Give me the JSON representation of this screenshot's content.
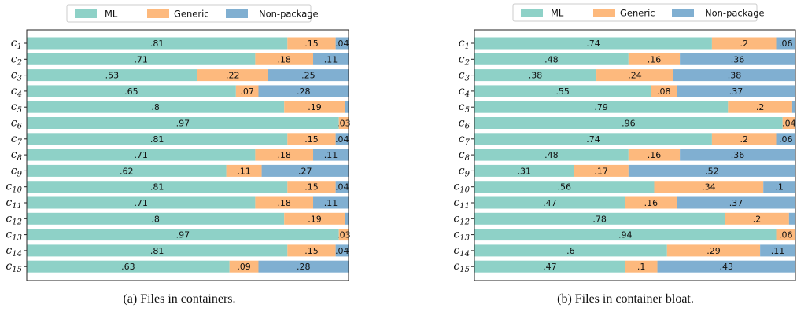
{
  "colors": {
    "ML": "#8ED1C7",
    "Generic": "#FDB97D",
    "Non-package": "#80AFD1"
  },
  "legend": [
    "ML",
    "Generic",
    "Non-package"
  ],
  "chart_data": [
    {
      "type": "bar",
      "orientation": "horizontal",
      "stacked": true,
      "caption": "(a) Files in containers.",
      "categories": [
        "c1",
        "c2",
        "c3",
        "c4",
        "c5",
        "c6",
        "c7",
        "c8",
        "c9",
        "c10",
        "c11",
        "c12",
        "c13",
        "c14",
        "c15"
      ],
      "xlim": [
        0,
        1
      ],
      "series": [
        {
          "name": "ML",
          "values": [
            0.81,
            0.71,
            0.53,
            0.65,
            0.8,
            0.97,
            0.81,
            0.71,
            0.62,
            0.81,
            0.71,
            0.8,
            0.97,
            0.81,
            0.63
          ],
          "labels": [
            ".81",
            ".71",
            ".53",
            ".65",
            ".8",
            ".97",
            ".81",
            ".71",
            ".62",
            ".81",
            ".71",
            ".8",
            ".97",
            ".81",
            ".63"
          ]
        },
        {
          "name": "Generic",
          "values": [
            0.15,
            0.18,
            0.22,
            0.07,
            0.19,
            0.03,
            0.15,
            0.18,
            0.11,
            0.15,
            0.18,
            0.19,
            0.03,
            0.15,
            0.09
          ],
          "labels": [
            ".15",
            ".18",
            ".22",
            ".07",
            ".19",
            ".03",
            ".15",
            ".18",
            ".11",
            ".15",
            ".18",
            ".19",
            ".03",
            ".15",
            ".09"
          ]
        },
        {
          "name": "Non-package",
          "values": [
            0.04,
            0.11,
            0.25,
            0.28,
            0.01,
            0.0,
            0.04,
            0.11,
            0.27,
            0.04,
            0.11,
            0.01,
            0.0,
            0.04,
            0.28
          ],
          "labels": [
            ".04",
            ".11",
            ".25",
            ".28",
            "",
            "",
            ".04",
            ".11",
            ".27",
            ".04",
            ".11",
            "",
            "",
            ".04",
            ".28"
          ]
        }
      ]
    },
    {
      "type": "bar",
      "orientation": "horizontal",
      "stacked": true,
      "caption": "(b) Files in container bloat.",
      "categories": [
        "c1",
        "c2",
        "c3",
        "c4",
        "c5",
        "c6",
        "c7",
        "c8",
        "c9",
        "c10",
        "c11",
        "c12",
        "c13",
        "c14",
        "c15"
      ],
      "xlim": [
        0,
        1
      ],
      "series": [
        {
          "name": "ML",
          "values": [
            0.74,
            0.48,
            0.38,
            0.55,
            0.79,
            0.96,
            0.74,
            0.48,
            0.31,
            0.56,
            0.47,
            0.78,
            0.94,
            0.6,
            0.47
          ],
          "labels": [
            ".74",
            ".48",
            ".38",
            ".55",
            ".79",
            ".96",
            ".74",
            ".48",
            ".31",
            ".56",
            ".47",
            ".78",
            ".94",
            ".6",
            ".47"
          ]
        },
        {
          "name": "Generic",
          "values": [
            0.2,
            0.16,
            0.24,
            0.08,
            0.2,
            0.04,
            0.2,
            0.16,
            0.17,
            0.34,
            0.16,
            0.2,
            0.06,
            0.29,
            0.1
          ],
          "labels": [
            ".2",
            ".16",
            ".24",
            ".08",
            ".2",
            ".04",
            ".2",
            ".16",
            ".17",
            ".34",
            ".16",
            ".2",
            ".06",
            ".29",
            ".1"
          ]
        },
        {
          "name": "Non-package",
          "values": [
            0.06,
            0.36,
            0.38,
            0.37,
            0.01,
            0.0,
            0.06,
            0.36,
            0.52,
            0.1,
            0.37,
            0.02,
            0.0,
            0.11,
            0.43
          ],
          "labels": [
            ".06",
            ".36",
            ".38",
            ".37",
            "",
            "",
            ".06",
            ".36",
            ".52",
            ".1",
            ".37",
            "",
            "",
            ".11",
            ".43"
          ]
        }
      ]
    }
  ]
}
